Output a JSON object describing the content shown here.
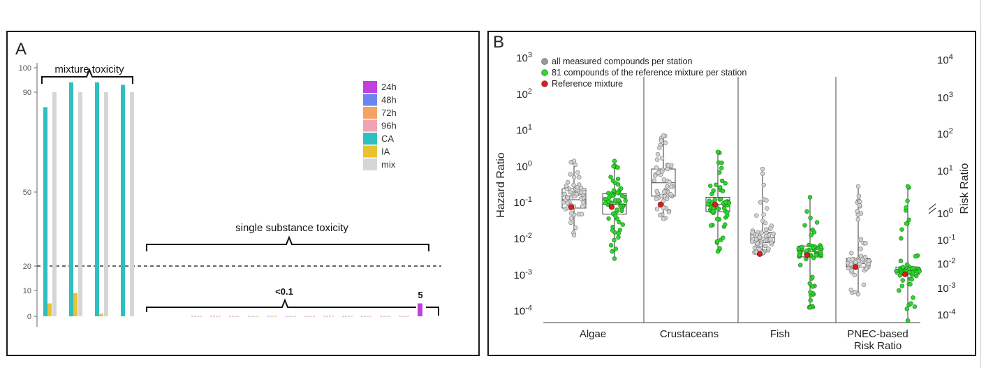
{
  "chart_data": [
    {
      "type": "bar",
      "panel_label": "A",
      "ylim": [
        0,
        100
      ],
      "yticks": [
        "0",
        "10",
        "20",
        "50",
        "90",
        "100"
      ],
      "threshold_line": 20,
      "group_labels": {
        "mixture": "mixture toxicity",
        "single": "single substance toxicity",
        "single_value": "<0.1",
        "single_top": "5"
      },
      "legend": [
        {
          "name": "24h",
          "color": "#c040e0"
        },
        {
          "name": "48h",
          "color": "#6a86ee"
        },
        {
          "name": "72h",
          "color": "#f5a265"
        },
        {
          "name": "96h",
          "color": "#f2a3b3"
        },
        {
          "name": "CA",
          "color": "#2fbfbf"
        },
        {
          "name": "IA",
          "color": "#e8c32e"
        },
        {
          "name": "mix",
          "color": "#d6d6d6"
        }
      ],
      "mixture_groups": [
        {
          "CA": 84,
          "IA": 5,
          "mix": 90
        },
        {
          "CA": 94,
          "IA": 9,
          "mix": 90
        },
        {
          "CA": 94,
          "IA": 1,
          "mix": 90
        },
        {
          "CA": 93,
          "IA": 0,
          "mix": 90
        }
      ],
      "single_substance": {
        "count": 12,
        "value": 0.1,
        "max_series": "24h",
        "max_value": 5
      }
    },
    {
      "type": "scatter",
      "panel_label": "B",
      "ylabel_left": "Hazard Ratio",
      "ylabel_right": "Risk Ratio",
      "left_axis": {
        "base": "10",
        "exponents": [
          "3",
          "2",
          "1",
          "0",
          "-1",
          "-2",
          "-3",
          "-4"
        ],
        "range": [
          -4,
          3
        ]
      },
      "right_axis": {
        "base": "10",
        "exponents": [
          "4",
          "3",
          "2",
          "1",
          "0",
          "-1",
          "-2",
          "-3",
          "-4"
        ]
      },
      "legend": [
        {
          "name": "all measured compounds per station",
          "color": "#9a9a9a"
        },
        {
          "name": "81 compounds of the reference mixture per station",
          "color": "#2ed62e"
        },
        {
          "name": "Reference mixture",
          "color": "#d81e1e"
        }
      ],
      "categories": [
        "Algae",
        "Crustaceans",
        "Fish",
        "PNEC-based Risk Ratio"
      ],
      "category_lines": [
        [
          "Algae"
        ],
        [
          "Crustaceans"
        ],
        [
          "Fish"
        ],
        [
          "PNEC-based",
          "Risk Ratio"
        ]
      ],
      "series": [
        {
          "name": "all measured compounds per station",
          "color": "#c8c8c8",
          "log10": [
            {
              "min": -1.9,
              "q1": -1.15,
              "median": -0.92,
              "q3": -0.62,
              "max": 0.15,
              "ref": -1.12
            },
            {
              "min": -1.45,
              "q1": -0.82,
              "median": -0.45,
              "q3": -0.07,
              "max": 0.85,
              "ref": -1.05
            },
            {
              "min": -2.4,
              "q1": -2.1,
              "median": -1.97,
              "q3": -1.82,
              "max": -0.07,
              "ref": -2.42
            },
            {
              "min": -3.53,
              "q1": -2.78,
              "median": -2.68,
              "q3": -2.55,
              "max": -0.55,
              "ref": -2.78
            }
          ]
        },
        {
          "name": "81 compounds of the reference mixture per station",
          "color": "#2ed62e",
          "log10": [
            {
              "min": -2.55,
              "q1": -1.32,
              "median": -1.05,
              "q3": -0.75,
              "max": 0.15,
              "ref": -1.12
            },
            {
              "min": -2.35,
              "q1": -1.25,
              "median": -1.05,
              "q3": -0.85,
              "max": 0.4,
              "ref": -1.05
            },
            {
              "min": -3.9,
              "q1": -2.5,
              "median": -2.35,
              "q3": -2.2,
              "max": -0.85,
              "ref": -2.45
            },
            {
              "min": -4.26,
              "q1": -2.98,
              "median": -2.88,
              "q3": -2.78,
              "max": -0.55,
              "ref": -2.98
            }
          ]
        }
      ]
    }
  ]
}
